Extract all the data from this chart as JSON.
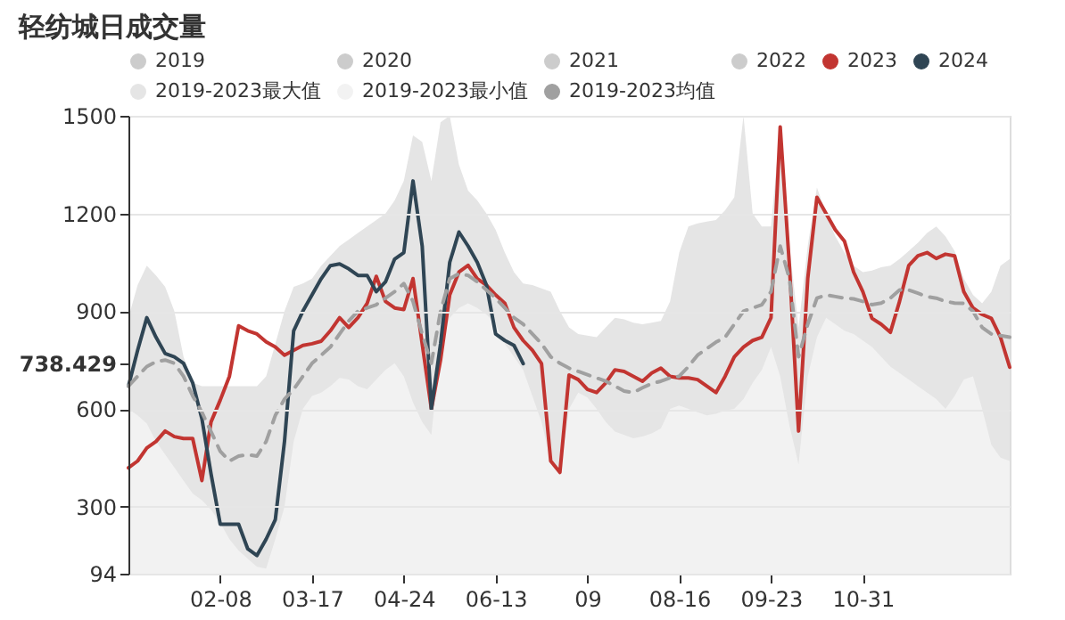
{
  "chart_data": {
    "type": "line",
    "title": "轻纺城日成交量",
    "categories": [
      null,
      null,
      null,
      null,
      null,
      null,
      null,
      null,
      null,
      null,
      "02-08",
      null,
      null,
      null,
      null,
      null,
      null,
      null,
      null,
      null,
      "03-17",
      null,
      null,
      null,
      null,
      null,
      null,
      null,
      null,
      null,
      "04-24",
      null,
      null,
      null,
      null,
      null,
      null,
      null,
      null,
      null,
      "06-13",
      null,
      null,
      null,
      null,
      null,
      null,
      null,
      null,
      null,
      "09",
      null,
      null,
      null,
      null,
      null,
      null,
      null,
      null,
      null,
      "08-16",
      null,
      null,
      null,
      null,
      null,
      null,
      null,
      null,
      null,
      "09-23",
      null,
      null,
      null,
      null,
      null,
      null,
      null,
      null,
      null,
      "10-31",
      null,
      null,
      null,
      null,
      null,
      null,
      null,
      null,
      null,
      null,
      null,
      null,
      null,
      null,
      null,
      null
    ],
    "ylim": [
      94,
      1500
    ],
    "yticks": [
      94,
      300,
      600,
      {
        "value": 738.429,
        "label": "738.429"
      },
      900,
      1200,
      1500
    ],
    "grid": "y",
    "legend": "top",
    "series": [
      {
        "name": "2019",
        "color": "#cccccc",
        "values": [
          null,
          null,
          null,
          null,
          null,
          null,
          null,
          null,
          null,
          null,
          null,
          null,
          null,
          null,
          null,
          null,
          null,
          null,
          null,
          null,
          null,
          null,
          null,
          null,
          null,
          null,
          null,
          null,
          null,
          null,
          null,
          null,
          null,
          null,
          null,
          null,
          null,
          null,
          null,
          null,
          null,
          null,
          null,
          null,
          null,
          null,
          null,
          null,
          null,
          null,
          null,
          null,
          null,
          null,
          null,
          null,
          null,
          null,
          null,
          null,
          null,
          null,
          null,
          null,
          null,
          null,
          null,
          null,
          null,
          null,
          null,
          null,
          null,
          null,
          null,
          null,
          null,
          null,
          null,
          null,
          null,
          null,
          null,
          null,
          null,
          null,
          null,
          null,
          null,
          null,
          null,
          null,
          null,
          null,
          null,
          null,
          null
        ]
      },
      {
        "name": "2020",
        "color": "#cccccc",
        "values": [
          null,
          null,
          null,
          null,
          null,
          null,
          null,
          null,
          null,
          null,
          null,
          null,
          null,
          null,
          null,
          null,
          null,
          null,
          null,
          null,
          null,
          null,
          null,
          null,
          null,
          null,
          null,
          null,
          null,
          null,
          null,
          null,
          null,
          null,
          null,
          null,
          null,
          null,
          null,
          null,
          null,
          null,
          null,
          null,
          null,
          null,
          null,
          null,
          null,
          null,
          null,
          null,
          null,
          null,
          null,
          null,
          null,
          null,
          null,
          null,
          null,
          null,
          null,
          null,
          null,
          null,
          null,
          null,
          null,
          null,
          null,
          null,
          null,
          null,
          null,
          null,
          null,
          null,
          null,
          null,
          null,
          null,
          null,
          null,
          null,
          null,
          null,
          null,
          null,
          null,
          null,
          null,
          null,
          null,
          null,
          null,
          null
        ]
      },
      {
        "name": "2021",
        "color": "#cccccc",
        "values": [
          null,
          null,
          null,
          null,
          null,
          null,
          null,
          null,
          null,
          null,
          null,
          null,
          null,
          null,
          null,
          null,
          null,
          null,
          null,
          null,
          null,
          null,
          null,
          null,
          null,
          null,
          null,
          null,
          null,
          null,
          null,
          null,
          null,
          null,
          null,
          null,
          null,
          null,
          null,
          null,
          null,
          null,
          null,
          null,
          null,
          null,
          null,
          null,
          null,
          null,
          null,
          null,
          null,
          null,
          null,
          null,
          null,
          null,
          null,
          null,
          null,
          null,
          null,
          null,
          null,
          null,
          null,
          null,
          null,
          null,
          null,
          null,
          null,
          null,
          null,
          null,
          null,
          null,
          null,
          null,
          null,
          null,
          null,
          null,
          null,
          null,
          null,
          null,
          null,
          null,
          null,
          null,
          null,
          null,
          null,
          null,
          null
        ]
      },
      {
        "name": "2022",
        "color": "#cccccc",
        "values": [
          null,
          null,
          null,
          null,
          null,
          null,
          null,
          null,
          null,
          null,
          null,
          null,
          null,
          null,
          null,
          null,
          null,
          null,
          null,
          null,
          null,
          null,
          null,
          null,
          null,
          null,
          null,
          null,
          null,
          null,
          null,
          null,
          null,
          null,
          null,
          null,
          null,
          null,
          null,
          null,
          null,
          null,
          null,
          null,
          null,
          null,
          null,
          null,
          null,
          null,
          null,
          null,
          null,
          null,
          null,
          null,
          null,
          null,
          null,
          null,
          null,
          null,
          null,
          null,
          null,
          null,
          null,
          null,
          null,
          null,
          null,
          null,
          null,
          null,
          null,
          null,
          null,
          null,
          null,
          null,
          null,
          null,
          null,
          null,
          null,
          null,
          null,
          null,
          null,
          null,
          null,
          null,
          null,
          null,
          null,
          null,
          null
        ]
      },
      {
        "name": "2023",
        "color": "#c23531",
        "values": [
          419,
          440,
          480,
          500,
          532,
          515,
          509,
          509,
          380,
          560,
          627,
          700,
          855,
          840,
          830,
          806,
          790,
          765,
          780,
          795,
          800,
          808,
          840,
          880,
          850,
          880,
          924,
          1007,
          930,
          910,
          905,
          1000,
          800,
          600,
          750,
          950,
          1020,
          1041,
          1000,
          980,
          950,
          924,
          850,
          810,
          780,
          739,
          440,
          405,
          704,
          690,
          660,
          650,
          680,
          720,
          715,
          700,
          685,
          710,
          725,
          700,
          695,
          695,
          690,
          670,
          650,
          700,
          760,
          790,
          810,
          820,
          880,
          1466,
          1041,
          532,
          1000,
          1250,
          1200,
          1150,
          1115,
          1020,
          960,
          878,
          860,
          835,
          930,
          1040,
          1070,
          1080,
          1062,
          1075,
          1070,
          960,
          910,
          890,
          878,
          820,
          728
        ]
      },
      {
        "name": "2024",
        "color": "#2f4554",
        "values": [
          670,
          780,
          880,
          820,
          770,
          760,
          740,
          680,
          570,
          400,
          246,
          246,
          246,
          170,
          150,
          200,
          260,
          500,
          840,
          900,
          950,
          1000,
          1040,
          1045,
          1030,
          1010,
          1010,
          960,
          990,
          1060,
          1080,
          1300,
          1100,
          600,
          800,
          1050,
          1143,
          1100,
          1050,
          980,
          830,
          810,
          795,
          739,
          null,
          null,
          null,
          null,
          null,
          null,
          null,
          null,
          null,
          null,
          null,
          null,
          null,
          null,
          null,
          null,
          null,
          null,
          null,
          null,
          null,
          null,
          null,
          null,
          null,
          null,
          null,
          null,
          null,
          null,
          null,
          null,
          null,
          null,
          null,
          null,
          null,
          null,
          null,
          null,
          null,
          null,
          null,
          null,
          null,
          null,
          null,
          null,
          null,
          null,
          null,
          null,
          null
        ]
      },
      {
        "name": "2019-2023最大值",
        "type": "area",
        "color": "#e5e5e5",
        "values": [
          880,
          980,
          1040,
          1010,
          975,
          900,
          760,
          680,
          670,
          670,
          670,
          670,
          670,
          670,
          670,
          700,
          800,
          900,
          975,
          985,
          1000,
          1040,
          1070,
          1100,
          1120,
          1140,
          1160,
          1180,
          1200,
          1240,
          1300,
          1440,
          1420,
          1300,
          1480,
          1500,
          1350,
          1270,
          1240,
          1200,
          1150,
          1080,
          1020,
          985,
          980,
          970,
          960,
          900,
          850,
          830,
          825,
          820,
          850,
          880,
          875,
          865,
          860,
          865,
          870,
          930,
          1080,
          1160,
          1170,
          1175,
          1180,
          1210,
          1250,
          1500,
          1200,
          1160,
          1160,
          1470,
          1100,
          850,
          1100,
          1280,
          1200,
          1130,
          1080,
          1040,
          1020,
          1025,
          1035,
          1040,
          1060,
          1085,
          1110,
          1140,
          1160,
          1130,
          1085,
          1000,
          950,
          924,
          960,
          1040,
          1060
        ]
      },
      {
        "name": "2019-2023最小值",
        "type": "area",
        "color": "#f2f2f2",
        "values": [
          600,
          580,
          555,
          500,
          460,
          420,
          380,
          340,
          320,
          290,
          250,
          200,
          165,
          140,
          115,
          110,
          200,
          300,
          500,
          600,
          640,
          650,
          670,
          695,
          690,
          670,
          660,
          690,
          720,
          740,
          700,
          620,
          560,
          520,
          800,
          880,
          910,
          924,
          910,
          890,
          860,
          800,
          760,
          720,
          640,
          560,
          440,
          400,
          600,
          650,
          635,
          600,
          560,
          530,
          520,
          510,
          515,
          525,
          540,
          600,
          610,
          600,
          590,
          580,
          585,
          595,
          600,
          630,
          680,
          720,
          790,
          700,
          550,
          430,
          700,
          820,
          880,
          860,
          840,
          830,
          810,
          790,
          760,
          730,
          710,
          690,
          670,
          650,
          630,
          600,
          640,
          690,
          700,
          600,
          490,
          450,
          440
        ]
      },
      {
        "name": "2019-2023均值",
        "color": "#a0a0a0",
        "line_style": "dashed",
        "values": [
          670,
          700,
          730,
          745,
          750,
          740,
          700,
          640,
          590,
          530,
          470,
          440,
          455,
          460,
          455,
          500,
          580,
          630,
          660,
          700,
          740,
          765,
          790,
          830,
          870,
          900,
          910,
          920,
          940,
          960,
          985,
          930,
          830,
          740,
          900,
          1000,
          1015,
          1010,
          990,
          965,
          940,
          910,
          880,
          860,
          830,
          800,
          760,
          740,
          725,
          715,
          705,
          695,
          685,
          670,
          655,
          650,
          665,
          678,
          685,
          695,
          700,
          730,
          765,
          785,
          805,
          820,
          860,
          900,
          910,
          920,
          960,
          1100,
          1000,
          760,
          860,
          940,
          950,
          945,
          940,
          938,
          930,
          920,
          925,
          940,
          965,
          965,
          955,
          945,
          940,
          930,
          925,
          924,
          900,
          850,
          830,
          825,
          820
        ]
      }
    ]
  }
}
